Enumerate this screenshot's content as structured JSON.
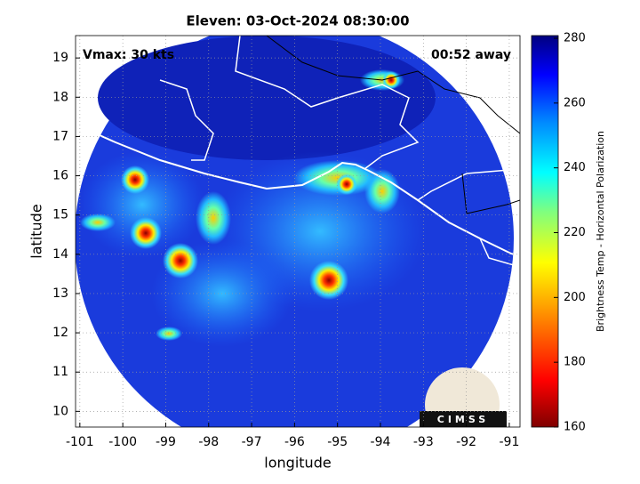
{
  "map": {
    "title": "Eleven: 03-Oct-2024 08:30:00",
    "annotations": [
      "Vmax: 30 kts",
      "00:52 away"
    ],
    "xlabel": "longitude",
    "ylabel": "latitude",
    "xlim": [
      -101.1,
      -90.75
    ],
    "ylim": [
      9.6,
      19.57
    ],
    "xticks": [
      -101,
      -100,
      -99,
      -98,
      -97,
      -96,
      -95,
      -94,
      -93,
      -92,
      -91
    ],
    "yticks": [
      10,
      11,
      12,
      13,
      14,
      15,
      16,
      17,
      18,
      19
    ],
    "grid": true,
    "colorbar": {
      "label": "Brightness Temp - Horizontal Polarization",
      "lim": [
        160,
        280
      ],
      "ticks": [
        160,
        180,
        200,
        220,
        240,
        260,
        280
      ]
    },
    "logo": "CIMSS"
  }
}
